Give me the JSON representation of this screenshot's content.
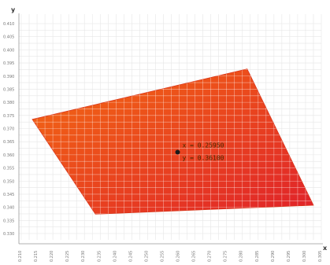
{
  "chart_data": {
    "type": "area",
    "title": "",
    "xlabel": "x",
    "ylabel": "y",
    "x_ticks": [
      0.21,
      0.215,
      0.22,
      0.225,
      0.23,
      0.235,
      0.24,
      0.245,
      0.25,
      0.255,
      0.26,
      0.265,
      0.27,
      0.275,
      0.28,
      0.285,
      0.29,
      0.295,
      0.3,
      0.305
    ],
    "y_ticks": [
      0.33,
      0.335,
      0.34,
      0.345,
      0.35,
      0.355,
      0.36,
      0.365,
      0.37,
      0.375,
      0.38,
      0.385,
      0.39,
      0.395,
      0.4,
      0.405,
      0.41
    ],
    "xlim": [
      0.21,
      0.305
    ],
    "ylim": [
      0.33,
      0.41
    ],
    "grid": true,
    "polygon": [
      {
        "x": 0.2135,
        "y": 0.3735
      },
      {
        "x": 0.2815,
        "y": 0.3927
      },
      {
        "x": 0.3025,
        "y": 0.3408
      },
      {
        "x": 0.2335,
        "y": 0.3374
      }
    ],
    "fill_colors": [
      "#f36b12",
      "#e0222a"
    ],
    "marker": {
      "x": 0.2595,
      "y": 0.361
    },
    "readout": {
      "x_text": "x = 0.25950",
      "y_text": "y = 0.36100"
    }
  }
}
